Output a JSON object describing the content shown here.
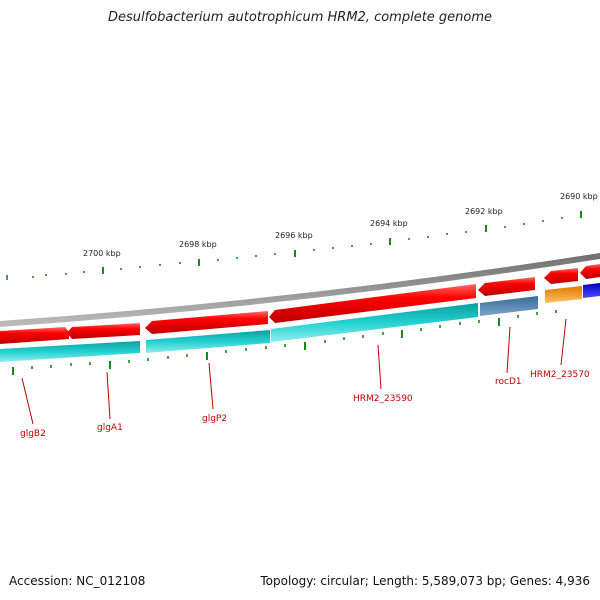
{
  "title": "Desulfobacterium autotrophicum HRM2, complete genome",
  "footer": {
    "accession": "Accession: NC_012108",
    "stats": "Topology: circular; Length: 5,589,073 bp; Genes: 4,936"
  },
  "scale_labels": [
    "2700 kbp",
    "2698 kbp",
    "2696 kbp",
    "2694 kbp",
    "2692 kbp",
    "2690 kbp"
  ],
  "gene_labels": [
    "glgB2",
    "glgA1",
    "glgP2",
    "HRM2_23590",
    "rocD1",
    "HRM2_23570"
  ],
  "colors": {
    "red_gene": "#e00000",
    "cyan_gene": "#1fc8c8",
    "steel_gene": "#4a7aa8",
    "orange_gene": "#ff9a1a",
    "blue_gene": "#0000ee",
    "backbone": "#8c8c8c",
    "tick": "#1a8a1a",
    "label": "#c00000"
  }
}
